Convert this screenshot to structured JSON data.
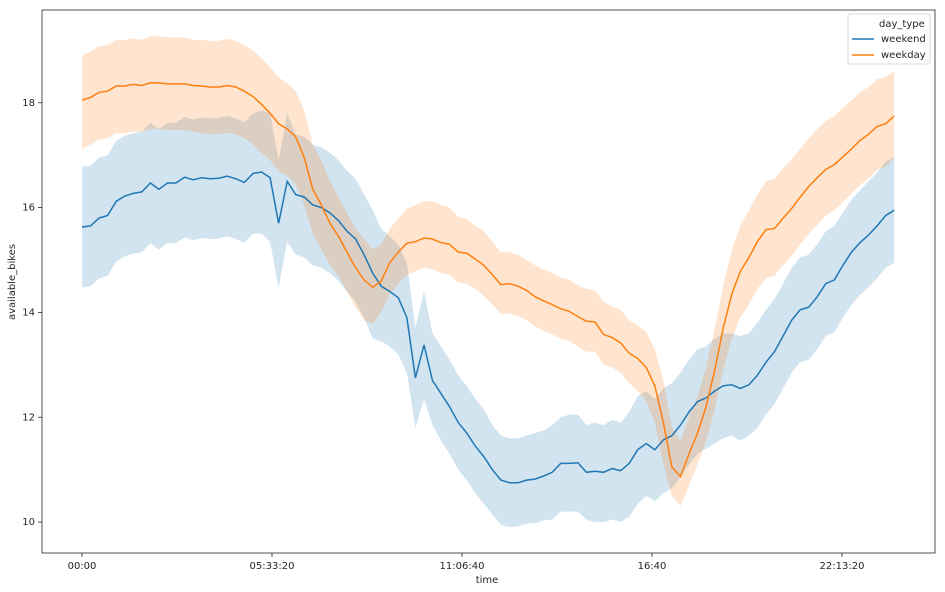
{
  "chart_data": {
    "type": "line",
    "xlabel": "time",
    "ylabel": "available_bikes",
    "legend_title": "day_type",
    "legend": "upper right",
    "x": [
      0,
      900,
      1800,
      2700,
      3600,
      4500,
      5400,
      6300,
      7200,
      8100,
      9000,
      9900,
      10800,
      11700,
      12600,
      13500,
      14400,
      15300,
      16200,
      17100,
      18000,
      18900,
      19800,
      20700,
      21600,
      22500,
      23400,
      24300,
      25200,
      26100,
      27000,
      27900,
      28800,
      29700,
      30600,
      31500,
      32400,
      33300,
      34200,
      35100,
      36000,
      36900,
      37800,
      38700,
      39600,
      40500,
      41400,
      42300,
      43200,
      44100,
      45000,
      45900,
      46800,
      47700,
      48600,
      49500,
      50400,
      51300,
      52200,
      53100,
      54000,
      54900,
      55800,
      56700,
      57600,
      58500,
      59400,
      60300,
      61200,
      62100,
      63000,
      63900,
      64800,
      65700,
      66600,
      67500,
      68400,
      69300,
      70200,
      71100,
      72000,
      72900,
      73800,
      74700,
      75600,
      76500,
      77400,
      78300,
      79200,
      80100,
      81000,
      81900,
      82800,
      83700,
      84600,
      85500
    ],
    "xlim": [
      -4210,
      89790
    ],
    "xticks": [
      {
        "value": 0,
        "label": "00:00"
      },
      {
        "value": 20000,
        "label": "05:33:20"
      },
      {
        "value": 40000,
        "label": "11:06:40"
      },
      {
        "value": 60000,
        "label": "16:40"
      },
      {
        "value": 80000,
        "label": "22:13:20"
      }
    ],
    "ylim": [
      9.41,
      19.77
    ],
    "yticks": [
      10,
      12,
      14,
      16,
      18
    ],
    "series": [
      {
        "name": "weekend",
        "color": "#1f77b4",
        "values": [
          15.63,
          15.65,
          15.8,
          15.85,
          16.12,
          16.22,
          16.27,
          16.3,
          16.47,
          16.35,
          16.47,
          16.47,
          16.58,
          16.53,
          16.57,
          16.55,
          16.56,
          16.6,
          16.55,
          16.48,
          16.65,
          16.68,
          16.57,
          15.7,
          16.5,
          16.25,
          16.2,
          16.05,
          16.0,
          15.9,
          15.75,
          15.55,
          15.4,
          15.1,
          14.75,
          14.5,
          14.4,
          14.28,
          13.9,
          12.75,
          13.38,
          12.7,
          12.45,
          12.2,
          11.9,
          11.7,
          11.45,
          11.25,
          11.0,
          10.8,
          10.75,
          10.75,
          10.8,
          10.82,
          10.88,
          10.95,
          11.12,
          11.12,
          11.13,
          10.95,
          10.97,
          10.95,
          11.02,
          10.98,
          11.12,
          11.38,
          11.5,
          11.38,
          11.57,
          11.65,
          11.85,
          12.1,
          12.3,
          12.37,
          12.5,
          12.6,
          12.62,
          12.55,
          12.62,
          12.8,
          13.05,
          13.25,
          13.55,
          13.85,
          14.05,
          14.1,
          14.3,
          14.55,
          14.62,
          14.9,
          15.15,
          15.33,
          15.48,
          15.65,
          15.85,
          15.95
        ],
        "ci_lower": [
          14.48,
          14.5,
          14.65,
          14.7,
          14.97,
          15.07,
          15.12,
          15.15,
          15.32,
          15.2,
          15.32,
          15.32,
          15.43,
          15.38,
          15.42,
          15.4,
          15.41,
          15.45,
          15.4,
          15.33,
          15.5,
          15.5,
          15.35,
          14.47,
          15.35,
          15.1,
          15.05,
          14.9,
          14.85,
          14.75,
          14.6,
          14.4,
          14.2,
          13.9,
          13.5,
          13.45,
          13.35,
          13.2,
          12.85,
          11.8,
          12.35,
          11.85,
          11.55,
          11.3,
          11.0,
          10.8,
          10.55,
          10.35,
          10.15,
          9.95,
          9.9,
          9.92,
          9.97,
          9.98,
          10.03,
          10.05,
          10.2,
          10.2,
          10.2,
          10.05,
          10.0,
          10.0,
          10.05,
          10.0,
          10.1,
          10.35,
          10.5,
          10.4,
          10.55,
          10.65,
          10.85,
          11.1,
          11.3,
          11.4,
          11.5,
          11.6,
          11.65,
          11.55,
          11.65,
          11.8,
          12.05,
          12.25,
          12.55,
          12.85,
          13.05,
          13.1,
          13.3,
          13.55,
          13.62,
          13.9,
          14.15,
          14.33,
          14.48,
          14.65,
          14.85,
          14.95
        ],
        "ci_upper": [
          16.78,
          16.8,
          16.95,
          17.0,
          17.27,
          17.37,
          17.42,
          17.45,
          17.62,
          17.5,
          17.62,
          17.62,
          17.73,
          17.68,
          17.72,
          17.7,
          17.71,
          17.75,
          17.7,
          17.63,
          17.8,
          17.85,
          17.8,
          16.9,
          17.8,
          17.4,
          17.35,
          17.2,
          17.15,
          17.05,
          16.9,
          16.7,
          16.55,
          16.25,
          15.95,
          15.6,
          15.45,
          15.3,
          14.95,
          13.7,
          14.4,
          13.6,
          13.35,
          13.1,
          12.8,
          12.6,
          12.35,
          12.15,
          11.85,
          11.65,
          11.6,
          11.6,
          11.65,
          11.7,
          11.75,
          11.85,
          12.0,
          12.05,
          12.05,
          11.85,
          11.9,
          11.85,
          11.95,
          11.9,
          12.1,
          12.4,
          12.5,
          12.35,
          12.55,
          12.65,
          12.85,
          13.1,
          13.3,
          13.35,
          13.5,
          13.6,
          13.6,
          13.55,
          13.6,
          13.8,
          14.05,
          14.25,
          14.55,
          14.85,
          15.05,
          15.1,
          15.3,
          15.55,
          15.65,
          15.9,
          16.15,
          16.33,
          16.5,
          16.67,
          16.88,
          16.97
        ]
      },
      {
        "name": "weekday",
        "color": "#ff7f0e",
        "values": [
          18.05,
          18.1,
          18.2,
          18.22,
          18.32,
          18.32,
          18.35,
          18.33,
          18.38,
          18.38,
          18.36,
          18.36,
          18.36,
          18.33,
          18.32,
          18.3,
          18.3,
          18.33,
          18.3,
          18.22,
          18.12,
          17.97,
          17.8,
          17.6,
          17.5,
          17.35,
          16.95,
          16.35,
          16.05,
          15.7,
          15.45,
          15.15,
          14.85,
          14.62,
          14.48,
          14.6,
          14.95,
          15.15,
          15.32,
          15.35,
          15.42,
          15.4,
          15.33,
          15.3,
          15.15,
          15.13,
          15.02,
          14.9,
          14.72,
          14.53,
          14.55,
          14.5,
          14.42,
          14.3,
          14.22,
          14.15,
          14.07,
          14.02,
          13.92,
          13.83,
          13.82,
          13.58,
          13.52,
          13.42,
          13.22,
          13.12,
          12.95,
          12.6,
          11.9,
          11.05,
          10.87,
          11.3,
          11.7,
          12.2,
          12.9,
          13.7,
          14.35,
          14.78,
          15.05,
          15.35,
          15.58,
          15.6,
          15.8,
          15.98,
          16.2,
          16.4,
          16.57,
          16.73,
          16.82,
          16.97,
          17.12,
          17.28,
          17.4,
          17.55,
          17.6,
          17.75
        ],
        "ci_lower": [
          17.12,
          17.2,
          17.3,
          17.32,
          17.42,
          17.42,
          17.45,
          17.45,
          17.5,
          17.5,
          17.48,
          17.48,
          17.48,
          17.45,
          17.42,
          17.4,
          17.4,
          17.43,
          17.4,
          17.32,
          17.2,
          17.05,
          16.9,
          16.7,
          16.6,
          16.45,
          16.05,
          15.5,
          15.2,
          14.9,
          14.7,
          14.4,
          14.1,
          13.85,
          13.78,
          14.0,
          14.35,
          14.55,
          14.72,
          14.78,
          14.85,
          14.82,
          14.75,
          14.72,
          14.57,
          14.55,
          14.45,
          14.32,
          14.15,
          13.97,
          13.98,
          13.93,
          13.85,
          13.73,
          13.65,
          13.58,
          13.5,
          13.45,
          13.35,
          13.25,
          13.25,
          13.0,
          12.95,
          12.85,
          12.65,
          12.5,
          12.3,
          11.9,
          11.1,
          10.5,
          10.3,
          10.7,
          11.1,
          11.55,
          12.15,
          12.9,
          13.5,
          13.9,
          14.15,
          14.45,
          14.65,
          14.7,
          14.9,
          15.08,
          15.3,
          15.5,
          15.67,
          15.85,
          15.95,
          16.1,
          16.27,
          16.43,
          16.55,
          16.72,
          16.78,
          16.95
        ],
        "ci_upper": [
          18.9,
          18.98,
          19.08,
          19.1,
          19.2,
          19.2,
          19.23,
          19.2,
          19.27,
          19.27,
          19.25,
          19.25,
          19.25,
          19.2,
          19.2,
          19.18,
          19.18,
          19.22,
          19.18,
          19.1,
          19.0,
          18.85,
          18.68,
          18.48,
          18.38,
          18.22,
          17.85,
          17.2,
          16.9,
          16.5,
          16.2,
          15.9,
          15.6,
          15.4,
          15.2,
          15.3,
          15.6,
          15.8,
          15.98,
          16.05,
          16.12,
          16.12,
          16.05,
          16.0,
          15.82,
          15.78,
          15.65,
          15.55,
          15.35,
          15.15,
          15.15,
          15.1,
          15.0,
          14.9,
          14.82,
          14.75,
          14.67,
          14.62,
          14.52,
          14.45,
          14.42,
          14.2,
          14.12,
          14.05,
          13.85,
          13.75,
          13.62,
          13.3,
          12.7,
          11.8,
          11.55,
          12.0,
          12.4,
          12.95,
          13.7,
          14.5,
          15.2,
          15.65,
          15.95,
          16.25,
          16.5,
          16.55,
          16.75,
          16.92,
          17.12,
          17.32,
          17.5,
          17.65,
          17.75,
          17.9,
          18.05,
          18.2,
          18.3,
          18.45,
          18.5,
          18.6
        ]
      }
    ]
  }
}
